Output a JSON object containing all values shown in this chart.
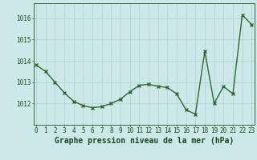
{
  "x": [
    0,
    1,
    2,
    3,
    4,
    5,
    6,
    7,
    8,
    9,
    10,
    11,
    12,
    13,
    14,
    15,
    16,
    17,
    18,
    19,
    20,
    21,
    22,
    23
  ],
  "y": [
    1013.8,
    1013.5,
    1013.0,
    1012.5,
    1012.1,
    1011.9,
    1011.8,
    1011.85,
    1012.0,
    1012.2,
    1012.55,
    1012.85,
    1012.9,
    1012.8,
    1012.75,
    1012.45,
    1011.7,
    1011.5,
    1014.45,
    1012.0,
    1012.8,
    1012.45,
    1016.15,
    1015.7
  ],
  "line_color": "#2d6a2d",
  "marker": "x",
  "marker_size": 3,
  "line_width": 1.0,
  "bg_color": "#cce8e8",
  "grid_color": "#aad0d0",
  "yticks": [
    1012,
    1013,
    1014,
    1015,
    1016
  ],
  "xticks": [
    0,
    1,
    2,
    3,
    4,
    5,
    6,
    7,
    8,
    9,
    10,
    11,
    12,
    13,
    14,
    15,
    16,
    17,
    18,
    19,
    20,
    21,
    22,
    23
  ],
  "xlabel": "Graphe pression niveau de la mer (hPa)",
  "xlabel_fontsize": 7.0,
  "tick_fontsize": 5.5,
  "label_color": "#1a4d1a",
  "axis_color": "#3a6b3a",
  "ylim_low": 1011.0,
  "ylim_high": 1016.7,
  "xlim_low": -0.3,
  "xlim_high": 23.3
}
